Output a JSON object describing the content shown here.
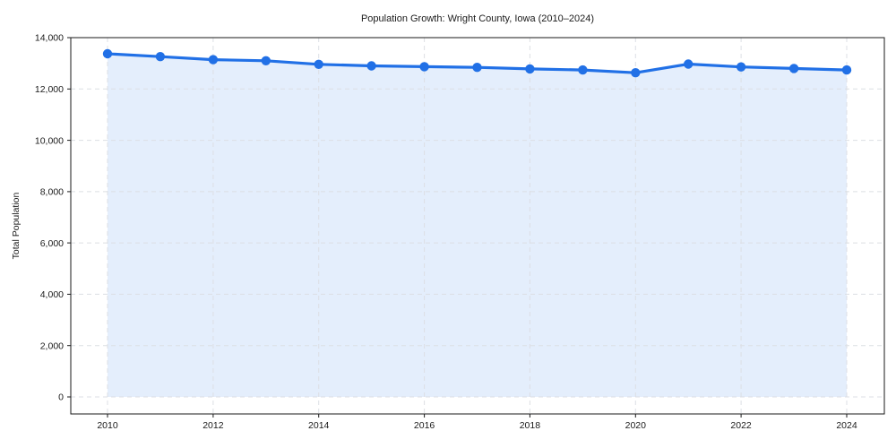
{
  "chart_data": {
    "type": "area",
    "title": "Population Growth: Wright County, Iowa (2010–2024)",
    "xlabel": "",
    "ylabel": "Total Population",
    "x": [
      2010,
      2011,
      2012,
      2013,
      2014,
      2015,
      2016,
      2017,
      2018,
      2019,
      2020,
      2021,
      2022,
      2023,
      2024
    ],
    "values": [
      13370,
      13260,
      13140,
      13100,
      12960,
      12900,
      12870,
      12840,
      12780,
      12740,
      12630,
      12970,
      12860,
      12800,
      12740
    ],
    "ylim": [
      0,
      14000
    ],
    "xlim": [
      2010,
      2024
    ],
    "yticks": [
      0,
      2000,
      4000,
      6000,
      8000,
      10000,
      12000,
      14000
    ],
    "xticks": [
      2010,
      2012,
      2014,
      2016,
      2018,
      2020,
      2022,
      2024
    ],
    "grid": true,
    "grid_style": "dashed",
    "legend": false,
    "marker": "circle",
    "colors": {
      "line": "#2170e6",
      "marker": "#2170e6",
      "fill": "rgba(33,112,230,0.12)",
      "grid": "#dcdfe4",
      "axis": "#1a1a1a",
      "text": "#1a1a1a",
      "background": "#ffffff"
    }
  }
}
